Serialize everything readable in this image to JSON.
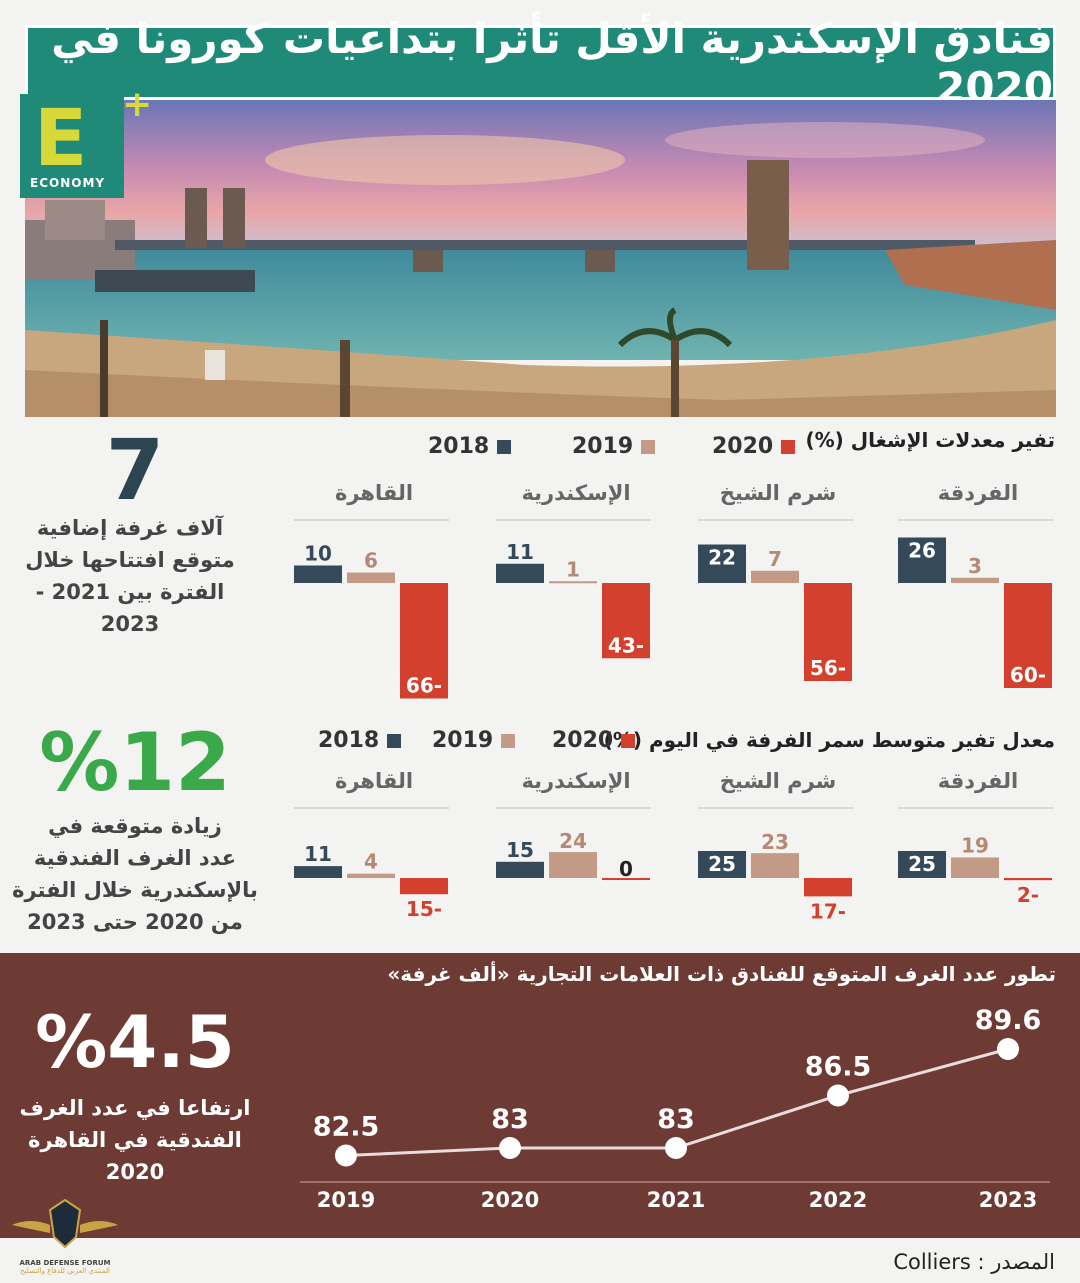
{
  "title": "فنادق الإسكندرية الأقل تأثرا بتداعيات كورونا في 2020",
  "logo": {
    "letter": "E",
    "plus": "+",
    "word": "ECONOMY"
  },
  "colors": {
    "y2018": "#34495a",
    "y2019": "#c39a86",
    "y2020": "#d4402e",
    "teal": "#1f8a78",
    "green": "#3aa94a",
    "maroon": "#6e3a34"
  },
  "legend": {
    "y2018": "2018",
    "y2019": "2019",
    "y2020": "2020"
  },
  "occupancy": {
    "title": "تفير معدلات الإشغال (%)"
  },
  "rate": {
    "title": "معدل تفير متوسط سمر الفرفة في اليوم (%)"
  },
  "side": {
    "stat1": {
      "value": "7",
      "text": [
        "آلاف غرفة إضافية",
        "متوقع افتتاحها خلال",
        "الفترة بين 2021 - 2023"
      ]
    },
    "stat2": {
      "value": "%12",
      "text": [
        "زيادة متوقعة في",
        "عدد الغرف الفندقية",
        "بالإسكندرية خلال الفترة",
        "من 2020 حتى 2023"
      ]
    },
    "stat3": {
      "value": "%4.5",
      "text": [
        "ارتفاعا في عدد الغرف",
        "الفندقية في القاهرة",
        "2020"
      ]
    }
  },
  "line": {
    "title": "تطور عدد الغرف المتوقع للفنادق ذات العلامات التجارية «ألف غرفة»"
  },
  "source": "Colliers : المصدر",
  "forum": {
    "line1": "ARAB DEFENSE FORUM",
    "line2": "المنتدى العربي للدفاع والتسليح"
  },
  "chart_data": [
    {
      "type": "bar",
      "title": "تفير معدلات الإشغال (%)",
      "categories": [
        "الفردقة",
        "شرم الشيخ",
        "الإسكندرية",
        "القاهرة"
      ],
      "series": [
        {
          "name": "2018",
          "values": [
            26,
            22,
            11,
            10
          ]
        },
        {
          "name": "2019",
          "values": [
            3,
            7,
            1,
            6
          ]
        },
        {
          "name": "2020",
          "values": [
            -60,
            -56,
            -43,
            -66
          ]
        }
      ],
      "labels": {
        "2018": [
          "26",
          "22",
          "11",
          "10"
        ],
        "2019": [
          "3",
          "7",
          "1",
          "6"
        ],
        "2020": [
          "60-",
          "56-",
          "43-",
          "66-"
        ]
      }
    },
    {
      "type": "bar",
      "title": "معدل تفير متوسط سمر الفرفة في اليوم (%)",
      "categories": [
        "الفردقة",
        "شرم الشيخ",
        "الإسكندرية",
        "القاهرة"
      ],
      "series": [
        {
          "name": "2018",
          "values": [
            25,
            25,
            15,
            11
          ]
        },
        {
          "name": "2019",
          "values": [
            19,
            23,
            24,
            4
          ]
        },
        {
          "name": "2020",
          "values": [
            -2,
            -17,
            0,
            -15
          ]
        }
      ],
      "labels": {
        "2018": [
          "25",
          "25",
          "15",
          "11"
        ],
        "2019": [
          "19",
          "23",
          "24",
          "4"
        ],
        "2020": [
          "2-",
          "17-",
          "0",
          "15-"
        ]
      }
    },
    {
      "type": "line",
      "title": "تطور عدد الغرف المتوقع للفنادق ذات العلامات التجارية «ألف غرفة»",
      "x": [
        "2019",
        "2020",
        "2021",
        "2022",
        "2023"
      ],
      "values": [
        82.5,
        83,
        83,
        86.5,
        89.6
      ],
      "labels": [
        "82.5",
        "83",
        "83",
        "86.5",
        "89.6"
      ]
    }
  ]
}
